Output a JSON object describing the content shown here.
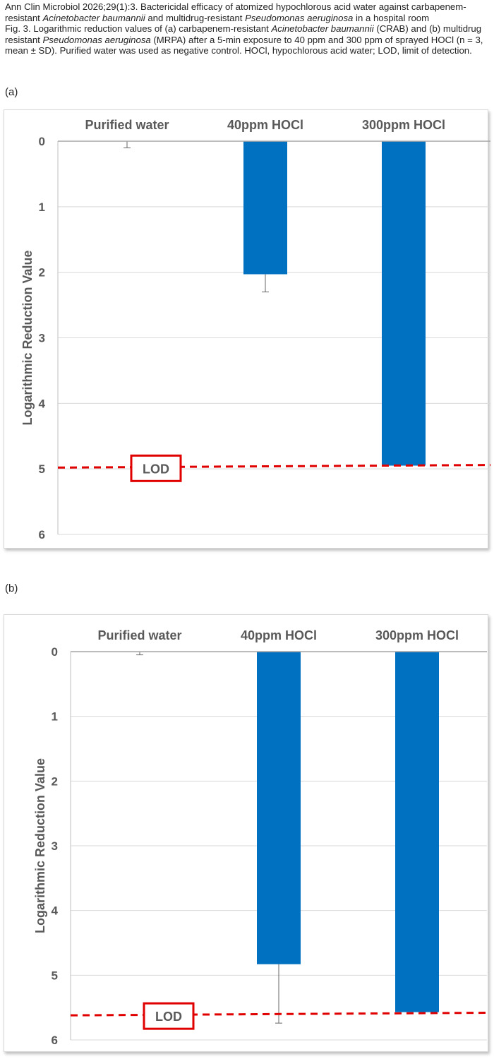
{
  "caption": {
    "line1": "Ann Clin Microbiol 2026;29(1):3. Bactericidal efficacy of atomized hypochlorous acid water against carbapenem-resistant ",
    "italic1": "Acinetobacter baumannii",
    "line1b": " and multidrug-resistant ",
    "italic2": "Pseudomonas aeruginosa",
    "line1c": " in a hospital room",
    "fig1": "Fig. 3. Logarithmic reduction values of (a) carbapenem-resistant ",
    "italic3": "Acinetobacter baumannii",
    "fig2": " (CRAB) and (b) multidrug resistant ",
    "italic4": "Pseudomonas aeruginosa",
    "fig3": " (MRPA) after a 5-min exposure to 40 ppm and 300 ppm of sprayed HOCl (n = 3, mean ± SD). Purified water was used as negative control. HOCl, hypochlorous acid water; LOD, limit of detection."
  },
  "colors": {
    "bar": "#0070c0",
    "lod": "#e00000",
    "grid": "#d9d9d9",
    "text": "#595959"
  },
  "chart_data": [
    {
      "type": "bar",
      "panel": "(a)",
      "categories": [
        "Purified water",
        "40ppm HOCl",
        "300ppm HOCl"
      ],
      "values": [
        0.0,
        2.03,
        4.95
      ],
      "errors": [
        0.1,
        0.27,
        0.0
      ],
      "ylabel": "Logarithmic Reduction Value",
      "ylim": [
        0,
        6
      ],
      "yticks": [
        "0",
        "1",
        "2",
        "3",
        "4",
        "5",
        "6"
      ],
      "y_inverted": true,
      "x_axis_position": "top",
      "lod": {
        "label": "LOD",
        "value_left": 4.98,
        "value_right": 4.94
      },
      "grid": true
    },
    {
      "type": "bar",
      "panel": "(b)",
      "categories": [
        "Purified water",
        "40ppm HOCl",
        "300ppm HOCl"
      ],
      "values": [
        0.0,
        4.83,
        5.57
      ],
      "errors": [
        0.05,
        0.91,
        0.0
      ],
      "ylabel": "Logarithmic Reduction Value",
      "ylim": [
        0,
        6
      ],
      "yticks": [
        "0",
        "1",
        "2",
        "3",
        "4",
        "5",
        "6"
      ],
      "y_inverted": true,
      "x_axis_position": "top",
      "lod": {
        "label": "LOD",
        "value_left": 5.62,
        "value_right": 5.58
      },
      "grid": true
    }
  ]
}
